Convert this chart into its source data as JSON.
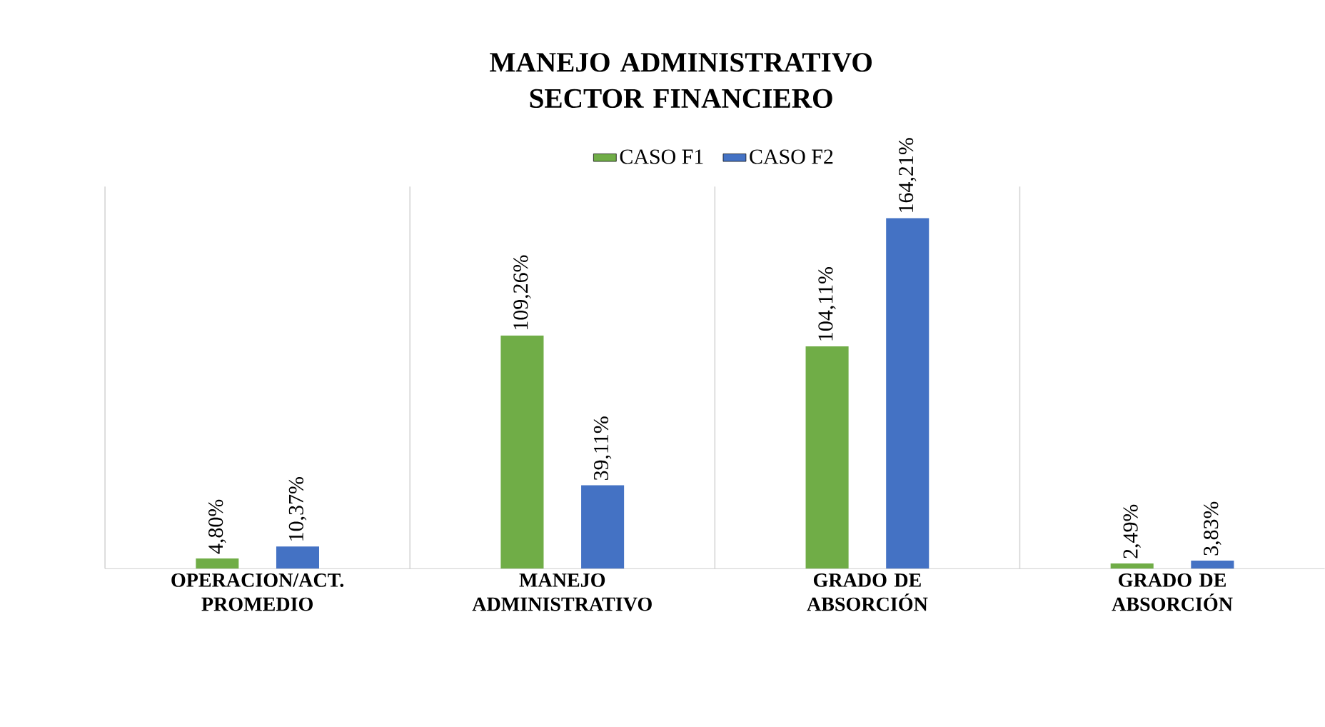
{
  "chart_data": {
    "type": "bar",
    "title": "MANEJO ADMINISTRATIVO SECTOR FINANCIERO",
    "categories": [
      "OPERACION/ACT. PROMEDIO",
      "MANEJO ADMINISTRATIVO",
      "GRADO DE ABSORCIÓN",
      "GRADO DE ABSORCIÓN"
    ],
    "series": [
      {
        "name": "CASO F1",
        "color": "#70ad47",
        "values": [
          4.8,
          109.26,
          104.11,
          2.49
        ],
        "value_labels": [
          "4,80%",
          "109,26%",
          "104,11%",
          "2,49%"
        ]
      },
      {
        "name": "CASO F2",
        "color": "#4472c4",
        "values": [
          10.37,
          39.11,
          164.21,
          3.83
        ],
        "value_labels": [
          "10,37%",
          "39,11%",
          "164,21%",
          "3,83%"
        ]
      }
    ],
    "grid": "x",
    "legend": "top"
  }
}
